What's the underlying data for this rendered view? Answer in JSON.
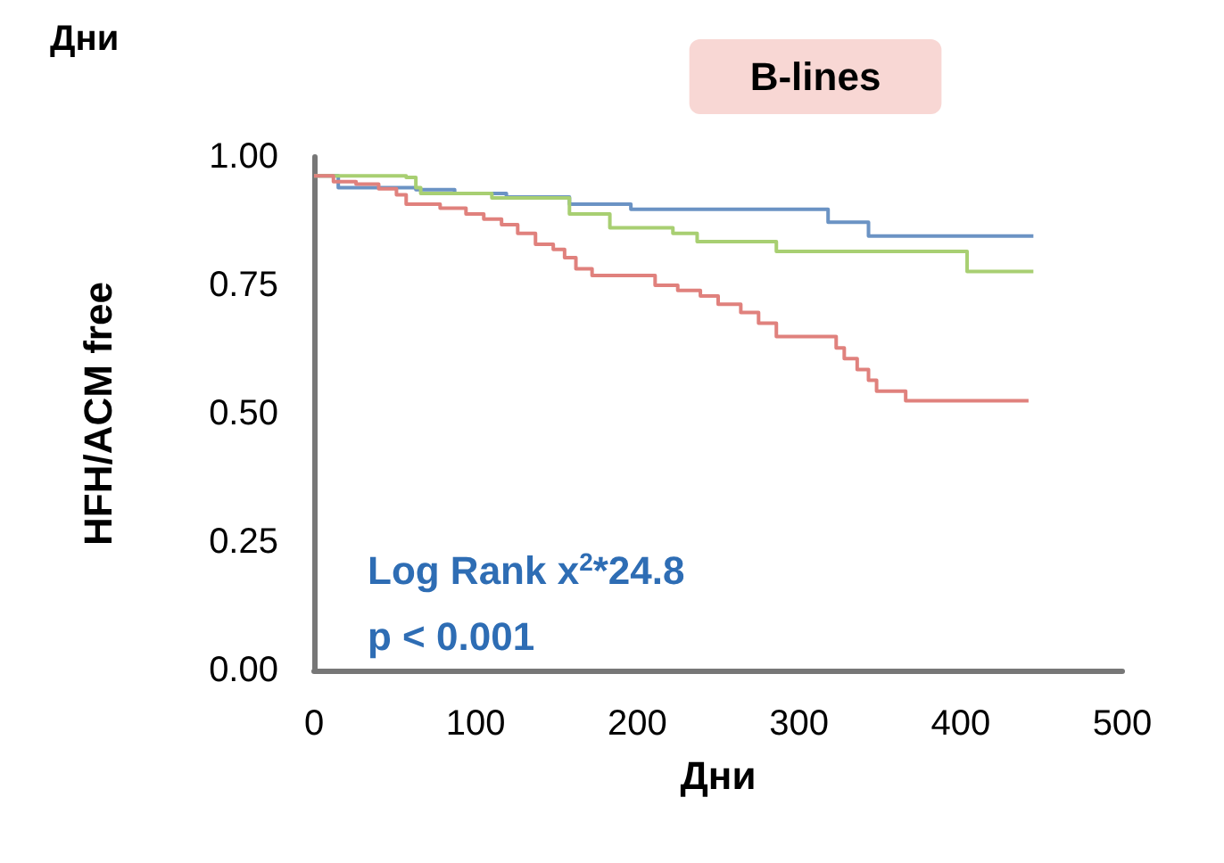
{
  "chart_data": {
    "type": "step",
    "title": "B-lines",
    "xlabel": "Дни",
    "ylabel": "HFH/ACM free",
    "annotations": [
      "Log Rank x$^{2}$*24.8",
      "p < 0.001",
      "Дни"
    ],
    "xlim": [
      0,
      500
    ],
    "xticks": [
      0,
      100,
      200,
      300,
      400,
      500
    ],
    "ylim": [
      0,
      1
    ],
    "yticks": [
      {
        "value": 0,
        "label": "0.00"
      },
      {
        "value": 0.25,
        "label": "0.25"
      },
      {
        "value": 0.5,
        "label": "0.50"
      },
      {
        "value": 0.75,
        "label": "0.75"
      },
      {
        "value": 1,
        "label": "1.00"
      }
    ],
    "grid": false,
    "marker": "none",
    "line_style": "solid",
    "series": [
      {
        "color": "#6b93c4",
        "x": [
          0,
          15,
          63,
          87,
          119,
          158,
          196,
          318,
          343,
          445
        ],
        "values": [
          0.963,
          0.94,
          0.936,
          0.929,
          0.922,
          0.908,
          0.898,
          0.873,
          0.846,
          0.846
        ]
      },
      {
        "color": "#a8cf72",
        "x": [
          0,
          57,
          63,
          66,
          110,
          158,
          183,
          222,
          237,
          286,
          404,
          445
        ],
        "values": [
          0.963,
          0.96,
          0.94,
          0.929,
          0.92,
          0.889,
          0.862,
          0.851,
          0.835,
          0.816,
          0.777,
          0.777
        ]
      },
      {
        "color": "#e0817d",
        "x": [
          0,
          12,
          26,
          40,
          51,
          57,
          78,
          94,
          105,
          116,
          126,
          137,
          148,
          155,
          162,
          172,
          211,
          225,
          239,
          250,
          264,
          275,
          286,
          323,
          328,
          336,
          343,
          348,
          366,
          442
        ],
        "values": [
          0.963,
          0.952,
          0.947,
          0.938,
          0.926,
          0.908,
          0.9,
          0.889,
          0.879,
          0.868,
          0.851,
          0.83,
          0.82,
          0.804,
          0.782,
          0.769,
          0.75,
          0.74,
          0.729,
          0.713,
          0.697,
          0.676,
          0.65,
          0.628,
          0.607,
          0.586,
          0.565,
          0.544,
          0.525,
          0.525
        ]
      }
    ]
  }
}
